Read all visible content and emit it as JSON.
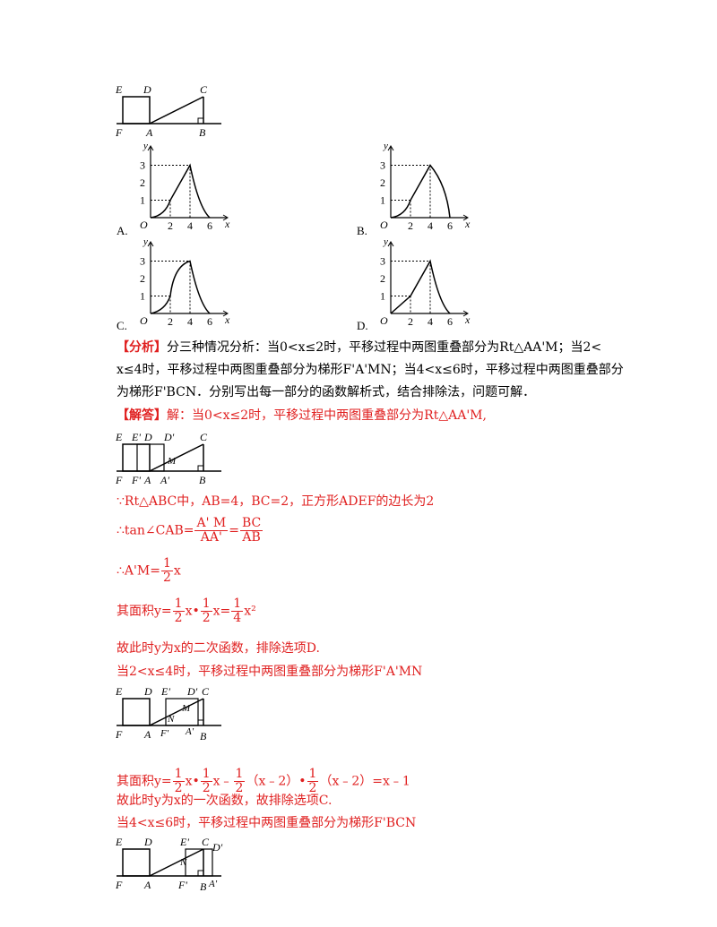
{
  "fig_top": {
    "E": "E",
    "D": "D",
    "C": "C",
    "F": "F",
    "A": "A",
    "B": "B"
  },
  "options": [
    "A.",
    "B.",
    "C.",
    "D."
  ],
  "graph_ticks": {
    "x": [
      "2",
      "4",
      "6"
    ],
    "y": [
      "1",
      "2",
      "3"
    ],
    "origin": "O",
    "xlabel": "x",
    "ylabel": "y"
  },
  "analysis": {
    "tag": "【分析】",
    "line1": "分三种情况分析：当0<x≤2时，平移过程中两图重叠部分为Rt△AA'M；当2<",
    "line2": "x≤4时，平移过程中两图重叠部分为梯形F'A'MN；当4<x≤6时，平移过程中两图重叠部分",
    "line3": "为梯形F'BCN．分别写出每一部分的函数解析式，结合排除法，问题可解．"
  },
  "solution": {
    "tag": "【解答】",
    "l1": "解：当0<x≤2时，平移过程中两图重叠部分为Rt△AA'M,",
    "l2": "∵Rt△ABC中，AB=4，BC=2，正方形ADEF的边长为2",
    "l3_pre": "∴tan∠CAB=",
    "l3_f1n": "A' M",
    "l3_f1d": "AA'",
    "l3_eq": "=",
    "l3_f2n": "BC",
    "l3_f2d": "AB",
    "l4_pre": "∴A'M=",
    "half_n": "1",
    "half_d": "2",
    "l4_post": "x",
    "l5_pre": "其面积y=",
    "l5_a": "x•",
    "l5_b": "x=",
    "quarter_d": "4",
    "l5_c": "x²",
    "l6": "故此时y为x的二次函数，排除选项D.",
    "l7": "当2<x≤4时，平移过程中两图重叠部分为梯形F'A'MN",
    "l8_pre": "其面积y=",
    "l8_a": "x•",
    "l8_b": "x﹣",
    "l8_c": "（x﹣2）•",
    "l8_d": "（x﹣2）=x﹣1",
    "l9": "故此时y为x的一次函数，故排除选项C.",
    "l10": "当4<x≤6时，平移过程中两图重叠部分为梯形F'BCN"
  },
  "fig2_labels": {
    "E": "E",
    "E2": "E'",
    "D": "D",
    "D2": "D'",
    "C": "C",
    "M": "M",
    "F": "F",
    "F2": "F'",
    "A": "A",
    "A2": "A'",
    "B": "B"
  },
  "fig3_labels": {
    "E": "E",
    "D": "D",
    "E2": "E'",
    "D2": "D'",
    "C": "C",
    "N": "N",
    "M": "M",
    "F": "F",
    "A": "A",
    "F2": "F'",
    "A2": "A'",
    "B": "B"
  },
  "fig4_labels": {
    "E": "E",
    "D": "D",
    "E2": "E'",
    "C": "C",
    "D2": "D'",
    "N": "N",
    "F": "F",
    "A": "A",
    "F2": "F'",
    "B": "B",
    "A2": "A'"
  }
}
